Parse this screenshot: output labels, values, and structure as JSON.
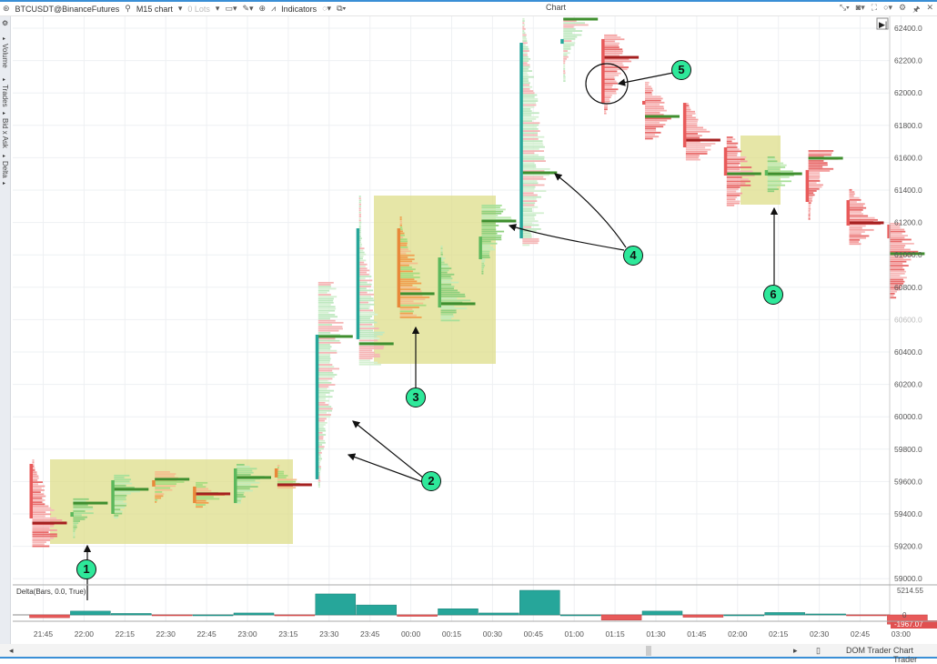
{
  "toolbar": {
    "symbol": "BTCUSDT@BinanceFutures",
    "timeframe": "M15 chart",
    "lots": "0 Lots",
    "indicators": "Indicators",
    "title": "Chart"
  },
  "sidebar": {
    "items": [
      "Volume",
      "Trades",
      "Bid x Ask",
      "Delta"
    ]
  },
  "price_axis": {
    "labels": [
      "62400.0",
      "62200.0",
      "62000.0",
      "61800.0",
      "61600.0",
      "61400.0",
      "61200.0",
      "61000.0",
      "60800.0",
      "60600.0",
      "60400.0",
      "60200.0",
      "60000.0",
      "59800.0",
      "59600.0",
      "59400.0",
      "59200.0",
      "59000.0"
    ]
  },
  "time_axis": {
    "labels": [
      "21:45",
      "22:00",
      "22:15",
      "22:30",
      "22:45",
      "23:00",
      "23:15",
      "23:30",
      "23:45",
      "00:00",
      "00:15",
      "00:30",
      "00:45",
      "01:00",
      "01:15",
      "01:30",
      "01:45",
      "02:00",
      "02:15",
      "02:30",
      "02:45",
      "03:00"
    ]
  },
  "colors": {
    "red": "#e85a5a",
    "green": "#5cb85c",
    "teal": "#26a69a",
    "orange": "#e8883a",
    "highlight": "#dede8a",
    "annotation": "#2ee89a"
  },
  "bars": [
    {
      "t": "21:45",
      "open": 59709,
      "close": 59372,
      "low": 59203,
      "high": 59737,
      "poc": 59344,
      "color": "red"
    },
    {
      "t": "22:00",
      "open": 59383,
      "close": 59411,
      "low": 59260,
      "high": 59496,
      "poc": 59467,
      "color": "green"
    },
    {
      "t": "22:15",
      "open": 59400,
      "close": 59608,
      "low": 59372,
      "high": 59642,
      "poc": 59552,
      "color": "green"
    },
    {
      "t": "22:30",
      "open": 59608,
      "close": 59569,
      "low": 59467,
      "high": 59664,
      "poc": 59614,
      "color": "orange"
    },
    {
      "t": "22:45",
      "open": 59569,
      "close": 59467,
      "low": 59439,
      "high": 59597,
      "poc": 59524,
      "color": "orange"
    },
    {
      "t": "23:00",
      "open": 59467,
      "close": 59681,
      "low": 59467,
      "high": 59709,
      "poc": 59625,
      "color": "green"
    },
    {
      "t": "23:15",
      "open": 59681,
      "close": 59625,
      "low": 59557,
      "high": 59703,
      "poc": 59580,
      "color": "orange"
    },
    {
      "t": "23:30",
      "open": 59614,
      "close": 60507,
      "low": 59569,
      "high": 60833,
      "poc": 60496,
      "color": "teal"
    },
    {
      "t": "23:45",
      "open": 60479,
      "close": 61164,
      "low": 60327,
      "high": 61366,
      "poc": 60451,
      "color": "teal"
    },
    {
      "t": "00:00",
      "open": 61164,
      "close": 60675,
      "low": 60619,
      "high": 61237,
      "poc": 60760,
      "color": "orange"
    },
    {
      "t": "00:15",
      "open": 60675,
      "close": 60984,
      "low": 60591,
      "high": 61057,
      "poc": 60698,
      "color": "green"
    },
    {
      "t": "00:30",
      "open": 60973,
      "close": 61113,
      "low": 60889,
      "high": 61310,
      "poc": 61209,
      "color": "green"
    },
    {
      "t": "00:45",
      "open": 61102,
      "close": 62310,
      "low": 61057,
      "high": 62462,
      "poc": 61507,
      "color": "teal"
    },
    {
      "t": "01:00",
      "open": 62304,
      "close": 62333,
      "low": 62069,
      "high": 62462,
      "poc": 62456,
      "color": "teal"
    },
    {
      "t": "01:15",
      "open": 62333,
      "close": 61939,
      "low": 61872,
      "high": 62361,
      "poc": 62220,
      "color": "red"
    },
    {
      "t": "01:30",
      "open": 61951,
      "close": 61928,
      "low": 61715,
      "high": 62069,
      "poc": 61855,
      "color": "red"
    },
    {
      "t": "01:45",
      "open": 61939,
      "close": 61664,
      "low": 61591,
      "high": 61939,
      "poc": 61709,
      "color": "red"
    },
    {
      "t": "02:00",
      "open": 61664,
      "close": 61490,
      "low": 61310,
      "high": 61731,
      "poc": 61501,
      "color": "red"
    },
    {
      "t": "02:15",
      "open": 61490,
      "close": 61524,
      "low": 61394,
      "high": 61608,
      "poc": 61501,
      "color": "green"
    },
    {
      "t": "02:30",
      "open": 61524,
      "close": 61327,
      "low": 61226,
      "high": 61647,
      "poc": 61597,
      "color": "red"
    },
    {
      "t": "02:45",
      "open": 61338,
      "close": 61181,
      "low": 61068,
      "high": 61406,
      "poc": 61198,
      "color": "red"
    },
    {
      "t": "03:00",
      "open": 61187,
      "close": 61102,
      "low": 60731,
      "high": 61198,
      "poc": 61007,
      "color": "red"
    }
  ],
  "delta": {
    "label": "Delta(Bars, 0.0, True)",
    "max_label": "5214.55",
    "zero_label": "0",
    "last_label": "-1967.07",
    "values": [
      -600,
      800,
      300,
      -100,
      0,
      400,
      -200,
      4450,
      2100,
      -300,
      1300,
      400,
      5214.55,
      0,
      -1100,
      800,
      -500,
      0,
      500,
      200,
      -100,
      -1967.07
    ]
  },
  "annotations": [
    "1",
    "2",
    "3",
    "4",
    "5",
    "6"
  ],
  "bottom": {
    "dom_trader": "DOM Trader",
    "chart_trader": "Chart Trader"
  }
}
